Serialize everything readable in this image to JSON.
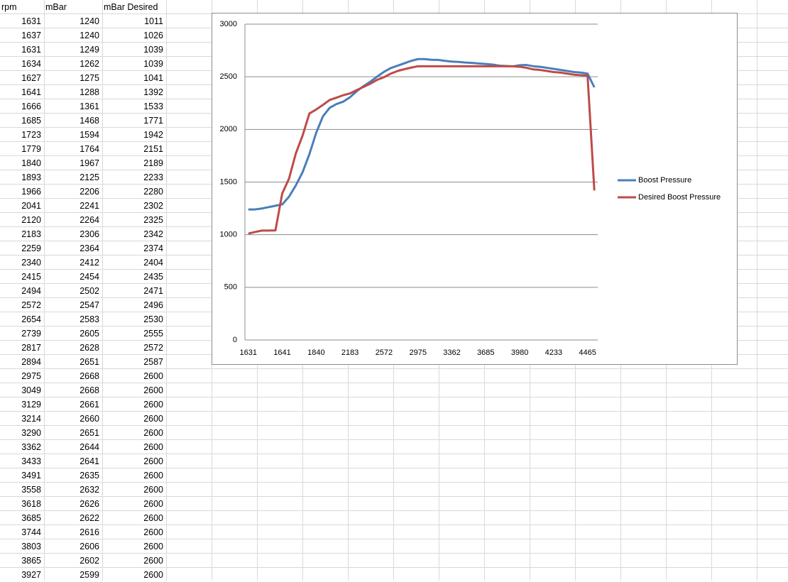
{
  "table": {
    "header": [
      "rpm",
      "mBar",
      "mBar Desired"
    ],
    "rows": [
      [
        1631,
        1240,
        1011
      ],
      [
        1637,
        1240,
        1026
      ],
      [
        1631,
        1249,
        1039
      ],
      [
        1634,
        1262,
        1039
      ],
      [
        1627,
        1275,
        1041
      ],
      [
        1641,
        1288,
        1392
      ],
      [
        1666,
        1361,
        1533
      ],
      [
        1685,
        1468,
        1771
      ],
      [
        1723,
        1594,
        1942
      ],
      [
        1779,
        1764,
        2151
      ],
      [
        1840,
        1967,
        2189
      ],
      [
        1893,
        2125,
        2233
      ],
      [
        1966,
        2206,
        2280
      ],
      [
        2041,
        2241,
        2302
      ],
      [
        2120,
        2264,
        2325
      ],
      [
        2183,
        2306,
        2342
      ],
      [
        2259,
        2364,
        2374
      ],
      [
        2340,
        2412,
        2404
      ],
      [
        2415,
        2454,
        2435
      ],
      [
        2494,
        2502,
        2471
      ],
      [
        2572,
        2547,
        2496
      ],
      [
        2654,
        2583,
        2530
      ],
      [
        2739,
        2605,
        2555
      ],
      [
        2817,
        2628,
        2572
      ],
      [
        2894,
        2651,
        2587
      ],
      [
        2975,
        2668,
        2600
      ],
      [
        3049,
        2668,
        2600
      ],
      [
        3129,
        2661,
        2600
      ],
      [
        3214,
        2660,
        2600
      ],
      [
        3290,
        2651,
        2600
      ],
      [
        3362,
        2644,
        2600
      ],
      [
        3433,
        2641,
        2600
      ],
      [
        3491,
        2635,
        2600
      ],
      [
        3558,
        2632,
        2600
      ],
      [
        3618,
        2626,
        2600
      ],
      [
        3685,
        2622,
        2600
      ],
      [
        3744,
        2616,
        2600
      ],
      [
        3803,
        2606,
        2600
      ],
      [
        3865,
        2602,
        2600
      ],
      [
        3927,
        2599,
        2600
      ]
    ]
  },
  "chart_data": {
    "type": "line",
    "categories": [
      1631,
      null,
      null,
      null,
      null,
      1641,
      null,
      null,
      null,
      null,
      1840,
      null,
      null,
      null,
      null,
      2183,
      null,
      null,
      null,
      null,
      2572,
      null,
      null,
      null,
      null,
      2975,
      null,
      null,
      null,
      null,
      3362,
      null,
      null,
      null,
      null,
      3685,
      null,
      null,
      null,
      null,
      3980,
      null,
      null,
      null,
      null,
      4233,
      null,
      null,
      null,
      null,
      4465,
      null
    ],
    "series": [
      {
        "name": "Boost Pressure",
        "color": "#4a7ebb",
        "values": [
          1240,
          1240,
          1249,
          1262,
          1275,
          1288,
          1361,
          1468,
          1594,
          1764,
          1967,
          2125,
          2206,
          2241,
          2264,
          2306,
          2364,
          2412,
          2454,
          2502,
          2547,
          2583,
          2605,
          2628,
          2651,
          2668,
          2668,
          2661,
          2660,
          2651,
          2644,
          2641,
          2635,
          2632,
          2626,
          2622,
          2616,
          2606,
          2602,
          2599,
          2610,
          2612,
          2600,
          2595,
          2585,
          2575,
          2565,
          2555,
          2545,
          2540,
          2530,
          2400
        ]
      },
      {
        "name": "Desired Boost Pressure",
        "color": "#be4b48",
        "values": [
          1011,
          1026,
          1039,
          1039,
          1041,
          1392,
          1533,
          1771,
          1942,
          2151,
          2189,
          2233,
          2280,
          2302,
          2325,
          2342,
          2374,
          2404,
          2435,
          2471,
          2496,
          2530,
          2555,
          2572,
          2587,
          2600,
          2600,
          2600,
          2600,
          2600,
          2600,
          2600,
          2600,
          2600,
          2600,
          2600,
          2600,
          2600,
          2600,
          2600,
          2595,
          2585,
          2570,
          2565,
          2555,
          2545,
          2540,
          2530,
          2520,
          2515,
          2510,
          1420
        ]
      }
    ],
    "ylim": [
      0,
      3000
    ],
    "yticks": [
      0,
      500,
      1000,
      1500,
      2000,
      2500,
      3000
    ],
    "grid": true,
    "legend": "right"
  }
}
